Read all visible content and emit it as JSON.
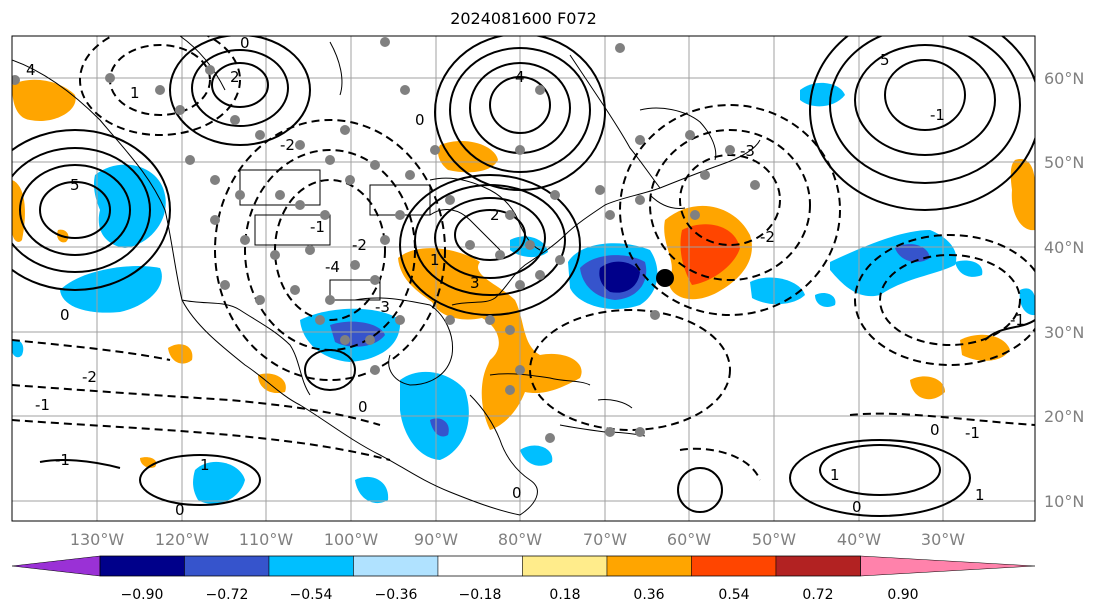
{
  "title": "2024081600 F072",
  "map": {
    "projection": "Plate Carree",
    "lon_range": [
      -139,
      -18
    ],
    "lat_range": [
      7,
      65
    ],
    "lon_labels": [
      "130°W",
      "120°W",
      "110°W",
      "100°W",
      "90°W",
      "80°W",
      "70°W",
      "60°W",
      "50°W",
      "40°W",
      "30°W"
    ],
    "lat_labels": [
      "10°N",
      "20°N",
      "30°N",
      "40°N",
      "50°N",
      "60°N"
    ],
    "gridlines": true,
    "contour_labels": [
      "4",
      "5",
      "2",
      "1",
      "0",
      "-1",
      "-2",
      "-3",
      "-4",
      "0",
      "1",
      "2",
      "3",
      "4",
      "5",
      "-1",
      "0",
      "1",
      "0",
      "0",
      "0",
      "-2",
      "-3",
      "-1",
      "0",
      "-1",
      "1",
      "-1",
      "0",
      "1",
      "-2",
      "-1",
      "-2"
    ],
    "colors": {
      "coastline": "#000000",
      "contour": "#000000",
      "gridline": "#a0a0a0",
      "station_dot": "#808080",
      "center_marker": "#000000"
    }
  },
  "colorbar": {
    "ticks": [
      "−0.90",
      "−0.72",
      "−0.54",
      "−0.36",
      "−0.18",
      "0.18",
      "0.36",
      "0.54",
      "0.72",
      "0.90"
    ],
    "colors": [
      "#9a31d6",
      "#00008a",
      "#3654cc",
      "#00bfff",
      "#b0e2ff",
      "#ffffff",
      "#ffec8b",
      "#ffa500",
      "#ff4500",
      "#b22222",
      "#ff82ab"
    ],
    "extend": "both"
  }
}
